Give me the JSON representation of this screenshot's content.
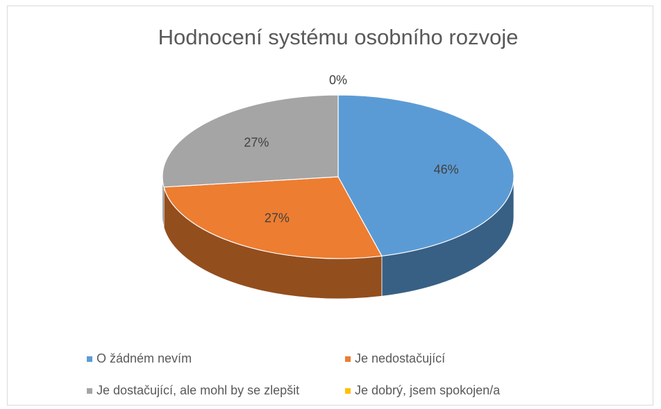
{
  "chart_data": {
    "type": "pie",
    "title": "Hodnocení systému osobního rozvoje",
    "categories": [
      "O žádném nevím",
      "Je nedostačující",
      "Je dostačující, ale mohl by se zlepšit",
      "Je dobrý, jsem spokojen/a"
    ],
    "values": [
      46,
      27,
      27,
      0
    ],
    "value_labels": [
      "46%",
      "27%",
      "27%",
      "0%"
    ],
    "colors": [
      "#5b9bd5",
      "#ed7d31",
      "#a5a5a5",
      "#ffc000"
    ],
    "legend": "bottom"
  }
}
